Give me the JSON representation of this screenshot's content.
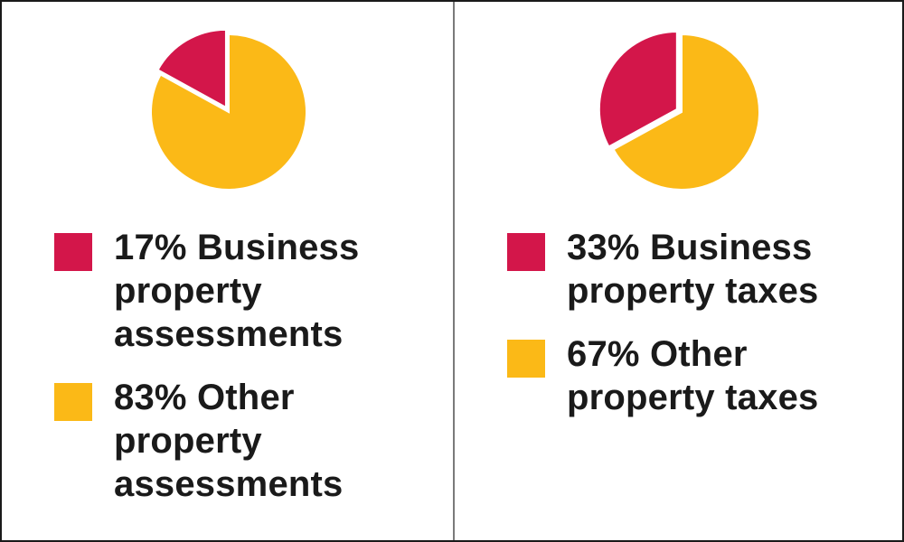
{
  "colors": {
    "business": "#d3164a",
    "other": "#fbb917"
  },
  "chart_data": [
    {
      "type": "pie",
      "slices": [
        {
          "label": "Business property assessments",
          "value": 17,
          "color": "#d3164a"
        },
        {
          "label": "Other property assessments",
          "value": 83,
          "color": "#fbb917"
        }
      ],
      "legend": [
        {
          "text": "17% Business property assessments",
          "color": "#d3164a"
        },
        {
          "text": "83% Other property assessments",
          "color": "#fbb917"
        }
      ],
      "exploded_slice": 0,
      "legend_position": "below"
    },
    {
      "type": "pie",
      "slices": [
        {
          "label": "Business property taxes",
          "value": 33,
          "color": "#d3164a"
        },
        {
          "label": "Other property taxes",
          "value": 67,
          "color": "#fbb917"
        }
      ],
      "legend": [
        {
          "text": "33% Business property taxes",
          "color": "#d3164a"
        },
        {
          "text": "67% Other property taxes",
          "color": "#fbb917"
        }
      ],
      "exploded_slice": 0,
      "legend_position": "below"
    }
  ]
}
